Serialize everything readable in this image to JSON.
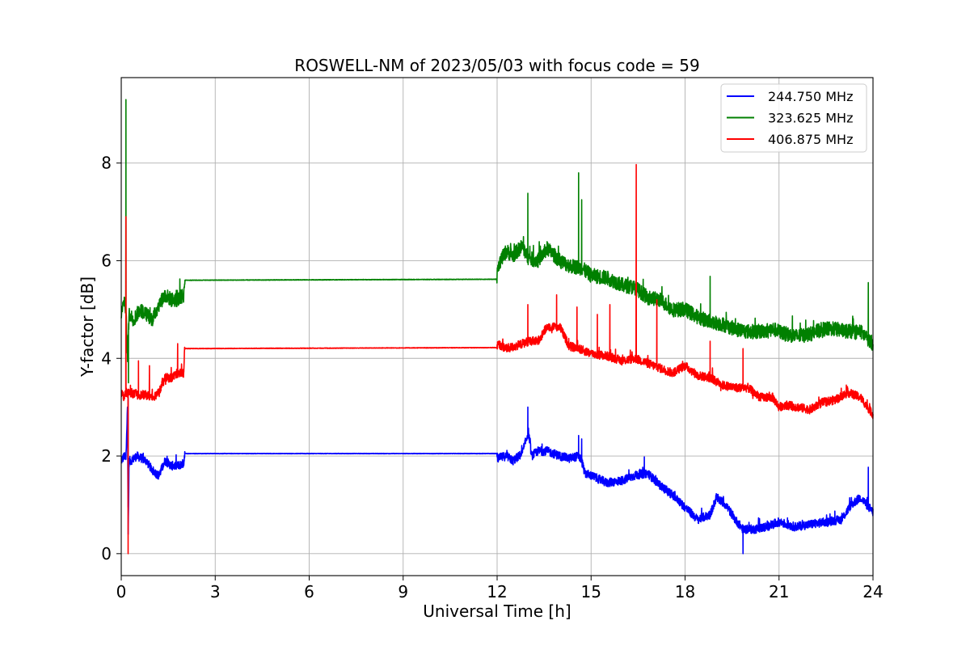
{
  "chart_data": {
    "type": "line",
    "title": "ROSWELL-NM of 2023/05/03 with focus code = 59",
    "xlabel": "Universal Time [h]",
    "ylabel": "Y-factor [dB]",
    "xlim": [
      0,
      24
    ],
    "ylim": [
      -0.45,
      9.75
    ],
    "xticks": [
      0,
      3,
      6,
      9,
      12,
      15,
      18,
      21,
      24
    ],
    "yticks": [
      0,
      2,
      4,
      6,
      8
    ],
    "grid": true,
    "legend_position": "top-right",
    "series": [
      {
        "name": "244.750 MHz",
        "color": "#0000ff",
        "noise": 0.09,
        "x": [
          0,
          0.1,
          0.15,
          0.2,
          0.22,
          0.25,
          0.3,
          0.5,
          0.8,
          1.0,
          1.2,
          1.4,
          1.6,
          1.8,
          2.0,
          2.02,
          12.0,
          12.01,
          12.3,
          12.5,
          12.8,
          13.0,
          13.1,
          13.3,
          13.6,
          14.0,
          14.3,
          14.6,
          14.7,
          14.8,
          15.0,
          15.5,
          16.0,
          16.4,
          16.8,
          17.2,
          17.6,
          18.0,
          18.4,
          18.8,
          19.0,
          19.3,
          19.6,
          19.85,
          20.2,
          20.6,
          21.0,
          21.5,
          22.0,
          22.5,
          23.0,
          23.3,
          23.6,
          23.8,
          24.0
        ],
        "y": [
          1.9,
          2.0,
          1.9,
          3.1,
          0.3,
          1.9,
          1.9,
          2.0,
          1.9,
          1.7,
          1.6,
          1.9,
          1.8,
          1.8,
          1.85,
          2.05,
          2.05,
          1.95,
          2.0,
          1.9,
          2.05,
          2.5,
          2.0,
          2.1,
          2.1,
          2.0,
          1.95,
          2.0,
          1.9,
          1.65,
          1.6,
          1.45,
          1.5,
          1.6,
          1.65,
          1.4,
          1.2,
          0.95,
          0.7,
          0.8,
          1.15,
          1.0,
          0.7,
          0.5,
          0.5,
          0.55,
          0.65,
          0.55,
          0.6,
          0.65,
          0.7,
          1.0,
          1.15,
          1.0,
          0.85
        ],
        "spikes": [
          [
            0.22,
            3.2
          ],
          [
            12.98,
            3.0
          ],
          [
            14.6,
            2.42
          ],
          [
            14.7,
            2.35
          ],
          [
            16.7,
            1.98
          ],
          [
            19.85,
            0.0
          ],
          [
            23.85,
            1.77
          ]
        ]
      },
      {
        "name": "323.625 MHz",
        "color": "#008000",
        "noise": 0.15,
        "x": [
          0,
          0.1,
          0.15,
          0.2,
          0.25,
          0.4,
          0.6,
          0.8,
          1.0,
          1.2,
          1.4,
          1.6,
          1.8,
          2.0,
          2.02,
          12.0,
          12.01,
          12.3,
          12.5,
          12.8,
          13.0,
          13.3,
          13.6,
          14.0,
          14.3,
          14.7,
          15.0,
          15.5,
          16.0,
          16.4,
          16.8,
          17.2,
          17.6,
          18.0,
          18.4,
          18.8,
          19.2,
          19.6,
          20.0,
          20.4,
          20.8,
          21.2,
          21.6,
          22.0,
          22.4,
          22.8,
          23.2,
          23.6,
          24.0
        ],
        "y": [
          4.9,
          5.2,
          5.0,
          4.0,
          4.9,
          4.8,
          5.0,
          4.9,
          4.8,
          5.1,
          5.3,
          5.2,
          5.2,
          5.3,
          5.6,
          5.62,
          5.9,
          6.2,
          6.1,
          6.3,
          6.05,
          6.0,
          6.25,
          6.0,
          5.9,
          5.85,
          5.7,
          5.65,
          5.5,
          5.45,
          5.25,
          5.2,
          5.0,
          5.0,
          4.85,
          4.75,
          4.7,
          4.6,
          4.55,
          4.55,
          4.6,
          4.5,
          4.45,
          4.5,
          4.6,
          4.6,
          4.55,
          4.55,
          4.3
        ],
        "spikes": [
          [
            0.15,
            9.3
          ],
          [
            0.23,
            3.5
          ],
          [
            12.98,
            7.38
          ],
          [
            14.6,
            7.8
          ],
          [
            14.7,
            7.25
          ],
          [
            18.8,
            5.68
          ],
          [
            23.85,
            5.55
          ]
        ]
      },
      {
        "name": "406.875 MHz",
        "color": "#ff0000",
        "noise": 0.09,
        "x": [
          0,
          0.1,
          0.15,
          0.2,
          0.3,
          0.5,
          0.8,
          1.0,
          1.2,
          1.4,
          1.6,
          1.8,
          2.0,
          2.02,
          12.0,
          12.01,
          12.3,
          12.6,
          13.0,
          13.3,
          13.6,
          14.0,
          14.3,
          14.6,
          15.0,
          15.5,
          16.0,
          16.4,
          16.8,
          17.2,
          17.6,
          18.0,
          18.4,
          18.8,
          19.2,
          19.6,
          20.0,
          20.4,
          20.8,
          21.0,
          21.2,
          21.6,
          22.0,
          22.4,
          22.8,
          23.2,
          23.6,
          24.0
        ],
        "y": [
          3.3,
          3.2,
          3.3,
          3.3,
          3.3,
          3.25,
          3.25,
          3.2,
          3.3,
          3.6,
          3.6,
          3.7,
          3.7,
          4.2,
          4.22,
          4.3,
          4.2,
          4.25,
          4.35,
          4.35,
          4.65,
          4.65,
          4.25,
          4.2,
          4.1,
          4.05,
          3.95,
          4.0,
          3.9,
          3.8,
          3.7,
          3.85,
          3.65,
          3.6,
          3.45,
          3.4,
          3.4,
          3.2,
          3.2,
          3.0,
          3.05,
          3.0,
          2.95,
          3.1,
          3.15,
          3.3,
          3.2,
          2.85
        ],
        "spikes": [
          [
            0.15,
            6.9
          ],
          [
            0.22,
            0.0
          ],
          [
            0.55,
            3.95
          ],
          [
            0.9,
            3.85
          ],
          [
            1.8,
            4.3
          ],
          [
            12.98,
            5.1
          ],
          [
            13.9,
            5.3
          ],
          [
            14.55,
            5.05
          ],
          [
            15.2,
            4.9
          ],
          [
            15.6,
            5.1
          ],
          [
            16.44,
            7.97
          ],
          [
            17.1,
            5.2
          ],
          [
            18.8,
            4.35
          ],
          [
            19.85,
            4.2
          ]
        ]
      }
    ]
  }
}
